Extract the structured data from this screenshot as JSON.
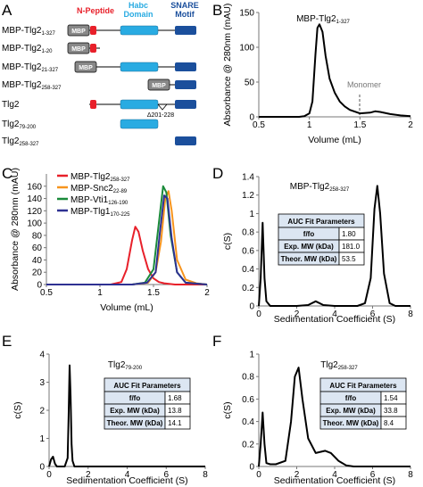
{
  "panels": {
    "A": {
      "letter": "A",
      "headers": {
        "npeptide": "N-Peptide",
        "habc_1": "Habc",
        "habc_2": "Domain",
        "snare_1": "SNARE",
        "snare_2": "Motif"
      },
      "constructs": [
        {
          "name": "MBP-Tlg2",
          "sub": "1-327",
          "mbp": "MBP"
        },
        {
          "name": "MBP-Tlg2",
          "sub": "1-20",
          "mbp": "MBP"
        },
        {
          "name": "MBP-Tlg2",
          "sub": "21-327",
          "mbp": "MBP"
        },
        {
          "name": "MBP-Tlg2",
          "sub": "258-327",
          "mbp": "MBP"
        },
        {
          "name": "Tlg2",
          "sub": ""
        },
        {
          "name": "Tlg2",
          "sub": "79-200"
        },
        {
          "name": "Tlg2",
          "sub": "258-327"
        }
      ],
      "deletion_label": "Δ201-228",
      "colors": {
        "npeptide": "#e8202a",
        "habc": "#29abe2",
        "snare": "#1b4f9c",
        "mbp": "#888888"
      }
    },
    "B": {
      "letter": "B",
      "annotation": "Monomer",
      "legend": "MBP-Tlg2",
      "legend_sub": "1-327"
    },
    "C": {
      "letter": "C"
    },
    "D": {
      "letter": "D",
      "legend": "MBP-Tlg2",
      "legend_sub": "258-327",
      "table": {
        "header": "AUC Fit Parameters",
        "rows": [
          {
            "label": "f/fo",
            "value": "1.80"
          },
          {
            "label": "Exp. MW (kDa)",
            "value": "181.0"
          },
          {
            "label": "Theor. MW (kDa)",
            "value": "53.5"
          }
        ]
      }
    },
    "E": {
      "letter": "E",
      "legend": "Tlg2",
      "legend_sub": "79-200",
      "table": {
        "header": "AUC Fit Parameters",
        "rows": [
          {
            "label": "f/fo",
            "value": "1.68"
          },
          {
            "label": "Exp. MW (kDa)",
            "value": "13.8"
          },
          {
            "label": "Theor. MW (kDa)",
            "value": "14.1"
          }
        ]
      }
    },
    "F": {
      "letter": "F",
      "legend": "Tlg2",
      "legend_sub": "258-327",
      "table": {
        "header": "AUC Fit Parameters",
        "rows": [
          {
            "label": "f/fo",
            "value": "1.54"
          },
          {
            "label": "Exp. MW (kDa)",
            "value": "33.8"
          },
          {
            "label": "Theor. MW (kDa)",
            "value": "8.4"
          }
        ]
      }
    }
  },
  "chart_data": [
    {
      "panel": "B",
      "type": "line",
      "xlabel": "Volume (mL)",
      "ylabel": "Absorbance @ 280nm (mAU)",
      "xlim": [
        0.5,
        2
      ],
      "ylim": [
        0,
        150
      ],
      "xticks": [
        "0.5",
        "1",
        "1.5",
        "2"
      ],
      "yticks": [
        "0",
        "50",
        "100",
        "150"
      ],
      "series": [
        {
          "name": "MBP-Tlg2 1-327",
          "color": "#000000",
          "x": [
            0.5,
            0.9,
            0.95,
            1.0,
            1.03,
            1.06,
            1.08,
            1.1,
            1.13,
            1.16,
            1.2,
            1.25,
            1.3,
            1.35,
            1.4,
            1.5,
            1.6,
            1.65,
            1.7,
            1.8,
            1.9,
            2.0
          ],
          "y": [
            0,
            0,
            1,
            5,
            22,
            90,
            128,
            133,
            122,
            88,
            55,
            35,
            22,
            15,
            10,
            5,
            6,
            8,
            7,
            4,
            2,
            1
          ]
        }
      ]
    },
    {
      "panel": "C",
      "type": "line",
      "xlabel": "Volume (mL)",
      "ylabel": "Absorbance @ 280nm (mAU)",
      "xlim": [
        0.5,
        2
      ],
      "ylim": [
        0,
        180
      ],
      "xticks": [
        "0.5",
        "1",
        "1.5",
        "2"
      ],
      "yticks": [
        "0",
        "20",
        "40",
        "60",
        "80",
        "100",
        "120",
        "140",
        "160"
      ],
      "series": [
        {
          "name": "MBP-Tlg2 258-327",
          "color": "#e8202a",
          "x": [
            0.5,
            1.1,
            1.2,
            1.25,
            1.3,
            1.33,
            1.36,
            1.4,
            1.45,
            1.5,
            1.55,
            1.6,
            1.7,
            2.0
          ],
          "y": [
            0,
            0,
            4,
            25,
            72,
            94,
            86,
            55,
            25,
            10,
            4,
            2,
            0,
            0
          ]
        },
        {
          "name": "MBP-Snc2 22-89",
          "color": "#f7941d",
          "x": [
            0.5,
            1.3,
            1.45,
            1.52,
            1.57,
            1.61,
            1.64,
            1.67,
            1.72,
            1.8,
            1.9,
            2.0
          ],
          "y": [
            0,
            0,
            3,
            20,
            70,
            140,
            152,
            120,
            40,
            8,
            2,
            0
          ]
        },
        {
          "name": "MBP-Vti1 126-190",
          "color": "#1a8a3a",
          "x": [
            0.5,
            1.3,
            1.42,
            1.5,
            1.55,
            1.59,
            1.62,
            1.66,
            1.72,
            1.8,
            2.0
          ],
          "y": [
            0,
            0,
            3,
            25,
            100,
            160,
            150,
            80,
            20,
            3,
            0
          ]
        },
        {
          "name": "MBP-Tlg1 170-225",
          "color": "#2e3192",
          "x": [
            0.5,
            1.3,
            1.44,
            1.52,
            1.56,
            1.6,
            1.63,
            1.67,
            1.72,
            1.8,
            2.0
          ],
          "y": [
            0,
            0,
            3,
            20,
            85,
            145,
            140,
            75,
            20,
            3,
            0
          ]
        }
      ]
    },
    {
      "panel": "D",
      "type": "line",
      "xlabel": "Sedimentation Coefficient (S)",
      "ylabel": "c(S)",
      "xlim": [
        0,
        8
      ],
      "ylim": [
        0,
        1.4
      ],
      "xticks": [
        "0",
        "2",
        "4",
        "6",
        "8"
      ],
      "yticks": [
        "0",
        "0.2",
        "0.4",
        "0.6",
        "0.8",
        "1",
        "1.2",
        "1.4"
      ],
      "series": [
        {
          "name": "MBP-Tlg2 258-327",
          "color": "#000000",
          "x": [
            0,
            0.1,
            0.2,
            0.3,
            0.4,
            0.6,
            2.0,
            2.6,
            3.0,
            3.4,
            4.0,
            5.2,
            5.6,
            5.9,
            6.1,
            6.25,
            6.4,
            6.6,
            6.9,
            7.2,
            8.0
          ],
          "y": [
            0,
            0.3,
            0.9,
            0.3,
            0.05,
            0,
            0,
            0.01,
            0.05,
            0.01,
            0,
            0,
            0.03,
            0.3,
            1.05,
            1.3,
            1.0,
            0.35,
            0.03,
            0,
            0
          ]
        }
      ]
    },
    {
      "panel": "E",
      "type": "line",
      "xlabel": "Sedimentation Coefficient (S)",
      "ylabel": "c(S)",
      "xlim": [
        0,
        8
      ],
      "ylim": [
        0,
        4
      ],
      "xticks": [
        "0",
        "2",
        "4",
        "6",
        "8"
      ],
      "yticks": [
        "0",
        "1",
        "2",
        "3",
        "4"
      ],
      "series": [
        {
          "name": "Tlg2 79-200",
          "color": "#000000",
          "x": [
            0,
            0.1,
            0.2,
            0.3,
            0.4,
            0.6,
            0.8,
            0.95,
            1.0,
            1.05,
            1.1,
            1.15,
            1.2,
            1.3,
            2.0,
            8.0
          ],
          "y": [
            0,
            0.25,
            0.35,
            0.1,
            0,
            0,
            0,
            0.3,
            1.8,
            3.6,
            2.5,
            0.8,
            0.2,
            0,
            0,
            0
          ]
        }
      ]
    },
    {
      "panel": "F",
      "type": "line",
      "xlabel": "Sedimentation Coefficient (S)",
      "ylabel": "c(S)",
      "xlim": [
        0,
        8
      ],
      "ylim": [
        0,
        1
      ],
      "xticks": [
        "0",
        "2",
        "4",
        "6",
        "8"
      ],
      "yticks": [
        "0",
        "0.2",
        "0.4",
        "0.6",
        "0.8",
        "1"
      ],
      "series": [
        {
          "name": "Tlg2 258-327",
          "color": "#000000",
          "x": [
            0,
            0.1,
            0.2,
            0.3,
            0.4,
            0.6,
            0.9,
            1.4,
            1.7,
            1.9,
            2.1,
            2.3,
            2.6,
            3.0,
            3.5,
            3.8,
            4.2,
            4.6,
            5.0,
            8.0
          ],
          "y": [
            0,
            0.2,
            0.48,
            0.2,
            0.03,
            0.02,
            0.02,
            0.05,
            0.4,
            0.8,
            0.88,
            0.6,
            0.25,
            0.12,
            0.14,
            0.12,
            0.05,
            0.01,
            0,
            0
          ]
        }
      ]
    }
  ]
}
